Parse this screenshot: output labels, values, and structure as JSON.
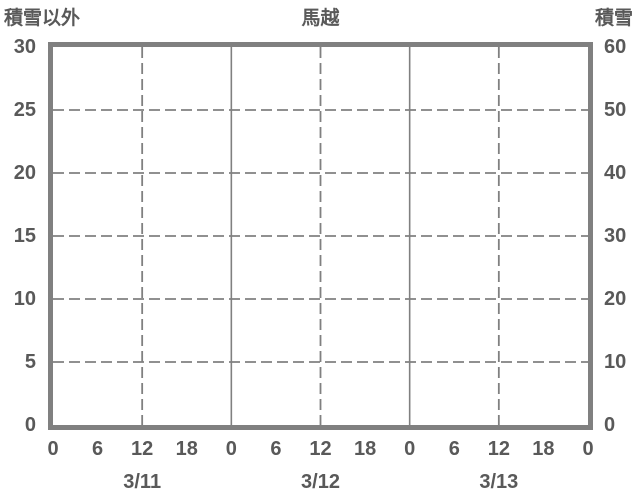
{
  "chart_data": {
    "type": "line",
    "title": "馬越",
    "left_axis": {
      "label": "積雪以外",
      "range": [
        0,
        30
      ],
      "ticks": [
        0,
        5,
        10,
        15,
        20,
        25,
        30
      ]
    },
    "right_axis": {
      "label": "積雪",
      "range": [
        0,
        60
      ],
      "ticks": [
        0,
        10,
        20,
        30,
        40,
        50,
        60
      ]
    },
    "x_axis": {
      "range_hours": [
        0,
        72
      ],
      "hour_tick_step": 6,
      "hour_tick_labels": [
        "0",
        "6",
        "12",
        "18",
        "0",
        "6",
        "12",
        "18",
        "0",
        "6",
        "12",
        "18",
        "0"
      ],
      "day_labels": [
        "3/11",
        "3/12",
        "3/13"
      ]
    },
    "gridlines": {
      "horizontal_dashed_left_values": [
        5,
        10,
        15,
        20,
        25
      ],
      "vertical_dashed_hours": [
        12,
        36,
        60
      ],
      "vertical_solid_hours": [
        24,
        48
      ]
    },
    "series": [],
    "legend": null,
    "colors": {
      "axis_text": "#595959",
      "grid": "#808080",
      "border": "#808080",
      "background": "#ffffff"
    }
  }
}
